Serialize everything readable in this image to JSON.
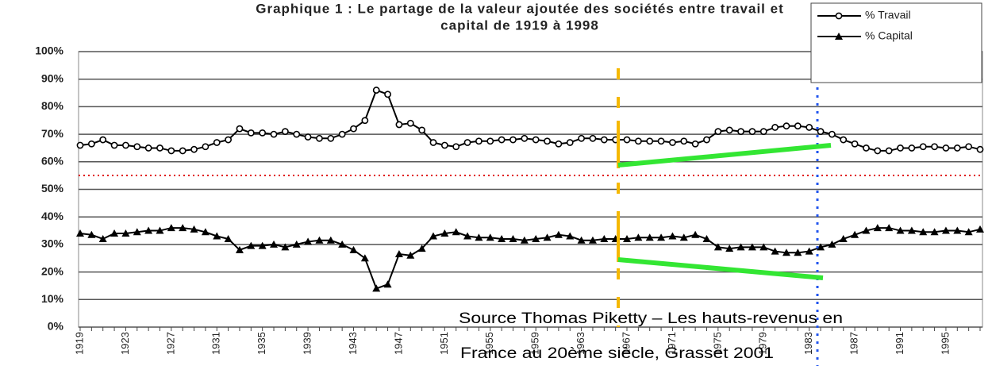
{
  "chart_data": {
    "type": "line",
    "title": "Graphique 1 : Le partage de la valeur ajoutée des sociétés entre travail et",
    "subtitle": "capital de 1919 à 1998",
    "annotations": [
      "Source Thomas Piketty – Les hauts-revenus en",
      "France au 20ème siècle, Grasset 2001"
    ],
    "x": [
      1919,
      1920,
      1921,
      1922,
      1923,
      1924,
      1925,
      1926,
      1927,
      1928,
      1929,
      1930,
      1931,
      1932,
      1933,
      1934,
      1935,
      1936,
      1937,
      1938,
      1939,
      1940,
      1941,
      1942,
      1943,
      1944,
      1945,
      1946,
      1947,
      1948,
      1949,
      1950,
      1951,
      1952,
      1953,
      1954,
      1955,
      1956,
      1957,
      1958,
      1959,
      1960,
      1961,
      1962,
      1963,
      1964,
      1965,
      1966,
      1967,
      1968,
      1969,
      1970,
      1971,
      1972,
      1973,
      1974,
      1975,
      1976,
      1977,
      1978,
      1979,
      1980,
      1981,
      1982,
      1983,
      1984,
      1985,
      1986,
      1987,
      1988,
      1989,
      1990,
      1991,
      1992,
      1993,
      1994,
      1995,
      1996,
      1997,
      1998
    ],
    "series": [
      {
        "name": "% Travail",
        "color": "#000000",
        "marker": "circle",
        "values": [
          66,
          66.5,
          68,
          66,
          66,
          65.5,
          65,
          65,
          64,
          64,
          64.5,
          65.5,
          67,
          68,
          72,
          70.5,
          70.5,
          70,
          71,
          70,
          69,
          68.5,
          68.5,
          70,
          72,
          75,
          86,
          84.5,
          73.5,
          74,
          71.5,
          67,
          66,
          65.5,
          67,
          67.5,
          67.5,
          68,
          68,
          68.5,
          68,
          67.5,
          66.5,
          67,
          68.5,
          68.5,
          68,
          68,
          68,
          67.5,
          67.5,
          67.5,
          67,
          67.5,
          66.5,
          68,
          71,
          71.5,
          71,
          71,
          71,
          72.5,
          73,
          73,
          72.5,
          71,
          70,
          68,
          66.5,
          65,
          64,
          64,
          65,
          65,
          65.5,
          65.5,
          65,
          65,
          65.5,
          64.5
        ]
      },
      {
        "name": "% Capital",
        "color": "#000000",
        "marker": "triangle",
        "values": [
          34,
          33.5,
          32,
          34,
          34,
          34.5,
          35,
          35,
          36,
          36,
          35.5,
          34.5,
          33,
          32,
          28,
          29.5,
          29.5,
          30,
          29,
          30,
          31,
          31.5,
          31.5,
          30,
          28,
          25,
          14,
          15.5,
          26.5,
          26,
          28.5,
          33,
          34,
          34.5,
          33,
          32.5,
          32.5,
          32,
          32,
          31.5,
          32,
          32.5,
          33.5,
          33,
          31.5,
          31.5,
          32,
          32,
          32,
          32.5,
          32.5,
          32.5,
          33,
          32.5,
          33.5,
          32,
          29,
          28.5,
          29,
          29,
          29,
          27.5,
          27,
          27,
          27.5,
          29,
          30,
          32,
          33.5,
          35,
          36,
          36,
          35,
          35,
          34.5,
          34.5,
          35,
          35,
          34.5,
          35.5
        ]
      }
    ],
    "xlim": [
      1919,
      1998
    ],
    "xticks": [
      1919,
      1923,
      1927,
      1931,
      1935,
      1939,
      1943,
      1947,
      1951,
      1955,
      1959,
      1963,
      1967,
      1971,
      1975,
      1979,
      1983,
      1987,
      1991,
      1995
    ],
    "ylim": [
      0,
      100
    ],
    "yticks": [
      {
        "value": 0,
        "label": "0%"
      },
      {
        "value": 10,
        "label": "10%"
      },
      {
        "value": 20,
        "label": "20%"
      },
      {
        "value": 30,
        "label": "30%"
      },
      {
        "value": 40,
        "label": "40%"
      },
      {
        "value": 50,
        "label": "50%"
      },
      {
        "value": 60,
        "label": "60%"
      },
      {
        "value": 70,
        "label": "70%"
      },
      {
        "value": 80,
        "label": "80%"
      },
      {
        "value": 90,
        "label": "90%"
      },
      {
        "value": 100,
        "label": "100%"
      }
    ],
    "grid": true,
    "legend": "top-right"
  }
}
